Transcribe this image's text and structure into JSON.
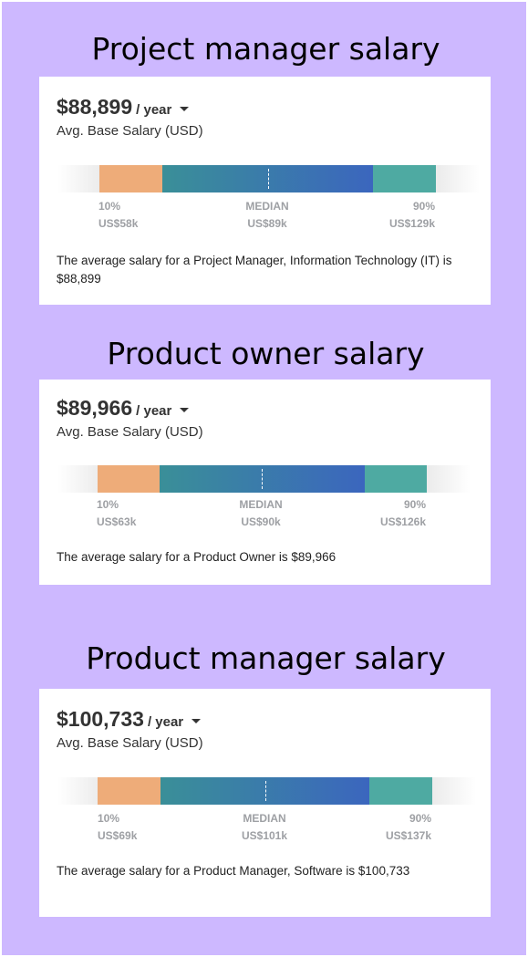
{
  "cards": [
    {
      "heading": "Project manager salary",
      "amount": "$88,899",
      "period": "/ year",
      "sublabel": "Avg. Base Salary (USD)",
      "low_label": "10%",
      "median_label": "MEDIAN",
      "high_label": "90%",
      "low_value": "US$58k",
      "median_value": "US$89k",
      "high_value": "US$129k",
      "description": "The average salary for a Project Manager, Information Technology (IT) is $88,899"
    },
    {
      "heading": "Product owner salary",
      "amount": "$89,966",
      "period": "/ year",
      "sublabel": "Avg. Base Salary (USD)",
      "low_label": "10%",
      "median_label": "MEDIAN",
      "high_label": "90%",
      "low_value": "US$63k",
      "median_value": "US$90k",
      "high_value": "US$126k",
      "description": "The average salary for a Product Owner is $89,966"
    },
    {
      "heading": "Product manager salary",
      "amount": "$100,733",
      "period": "/ year",
      "sublabel": "Avg. Base Salary (USD)",
      "low_label": "10%",
      "median_label": "MEDIAN",
      "high_label": "90%",
      "low_value": "US$69k",
      "median_value": "US$101k",
      "high_value": "US$137k",
      "description": "The average salary for a Product Manager, Software is $100,733"
    }
  ],
  "colors": {
    "background": "#cdb8ff",
    "low_segment": "#eeac79",
    "mid_segment_start": "#3a8f98",
    "mid_segment_end": "#3b66be",
    "high_segment": "#4eaaa2"
  }
}
